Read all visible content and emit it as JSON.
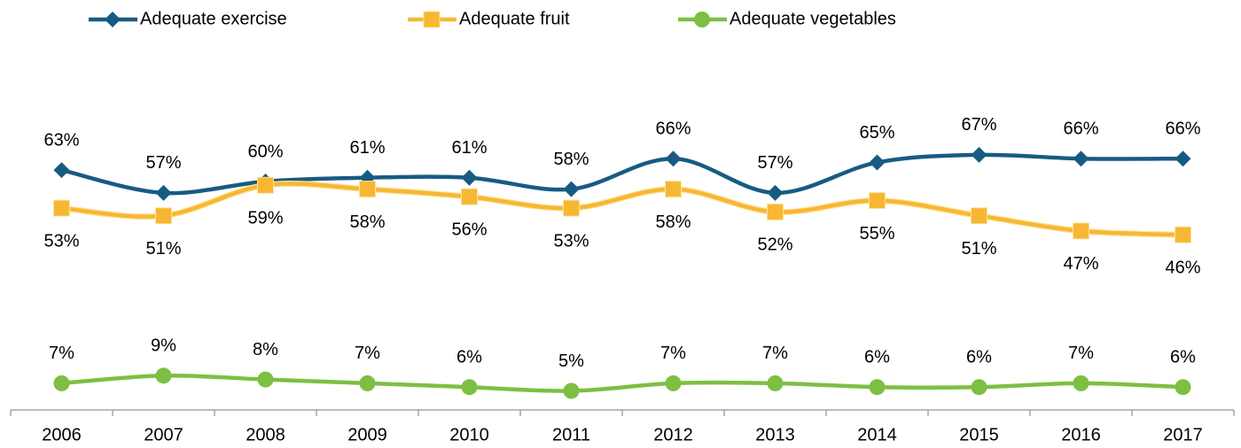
{
  "chart_data": {
    "type": "line",
    "categories": [
      "2006",
      "2007",
      "2008",
      "2009",
      "2010",
      "2011",
      "2012",
      "2013",
      "2014",
      "2015",
      "2016",
      "2017"
    ],
    "ylim": [
      0,
      80
    ],
    "legend": "top",
    "series": [
      {
        "name": "Adequate exercise",
        "color": "#175b83",
        "marker": "diamond",
        "label_position": "above",
        "values": [
          63,
          57,
          60,
          61,
          61,
          58,
          66,
          57,
          65,
          67,
          66,
          66
        ],
        "value_labels": [
          "63%",
          "57%",
          "60%",
          "61%",
          "61%",
          "58%",
          "66%",
          "57%",
          "65%",
          "67%",
          "66%",
          "66%"
        ]
      },
      {
        "name": "Adequate fruit",
        "color": "#f7b733",
        "marker": "square",
        "label_position": "below",
        "values": [
          53,
          51,
          59,
          58,
          56,
          53,
          58,
          52,
          55,
          51,
          47,
          46
        ],
        "value_labels": [
          "53%",
          "51%",
          "59%",
          "58%",
          "56%",
          "53%",
          "58%",
          "52%",
          "55%",
          "51%",
          "47%",
          "46%"
        ]
      },
      {
        "name": "Adequate vegetables",
        "color": "#7dbf42",
        "marker": "circle",
        "label_position": "above",
        "values": [
          7,
          9,
          8,
          7,
          6,
          5,
          7,
          7,
          6,
          6,
          7,
          6
        ],
        "value_labels": [
          "7%",
          "9%",
          "8%",
          "7%",
          "6%",
          "5%",
          "7%",
          "7%",
          "6%",
          "6%",
          "7%",
          "6%"
        ]
      }
    ]
  }
}
